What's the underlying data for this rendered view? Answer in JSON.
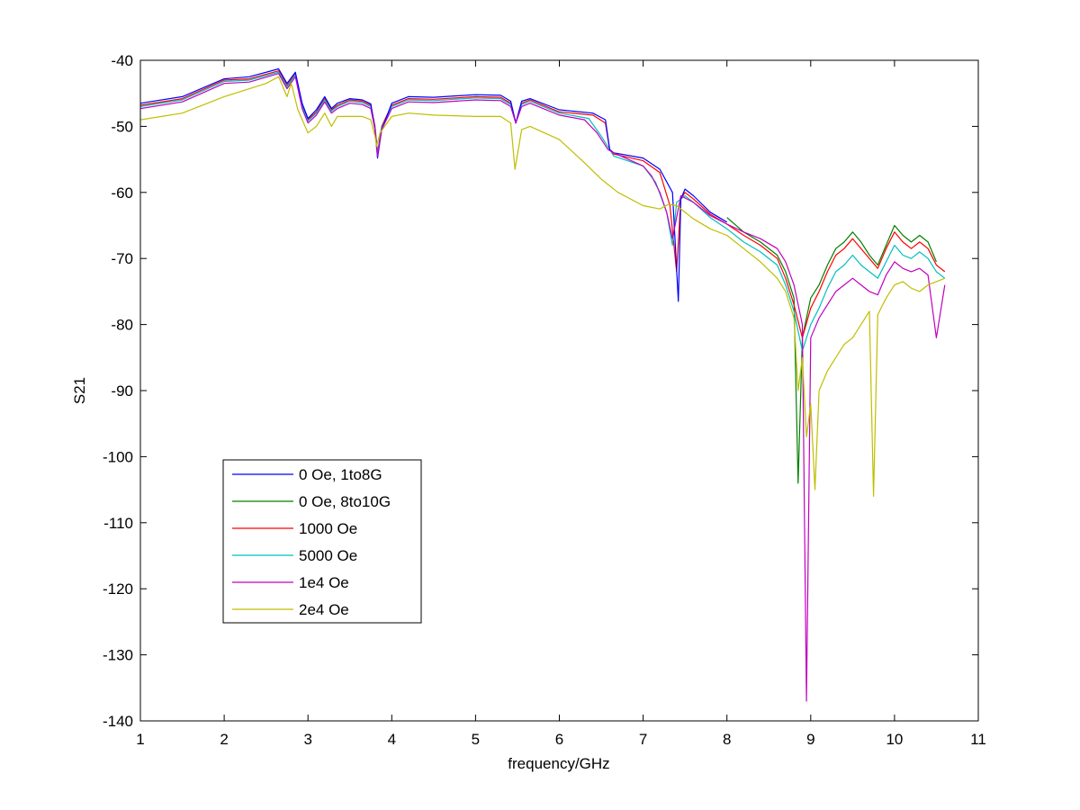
{
  "chart_data": {
    "type": "line",
    "xlabel": "frequency/GHz",
    "ylabel": "S21",
    "xlim": [
      1,
      11
    ],
    "ylim": [
      -140,
      -40
    ],
    "xticks": [
      1,
      2,
      3,
      4,
      5,
      6,
      7,
      8,
      9,
      10,
      11
    ],
    "yticks": [
      -40,
      -50,
      -60,
      -70,
      -80,
      -90,
      -100,
      -110,
      -120,
      -130,
      -140
    ],
    "grid": false,
    "legend_position": "lower-left",
    "series": [
      {
        "name": "0 Oe, 1to8G",
        "color": "#0000ff",
        "x": [
          1.0,
          1.5,
          2.0,
          2.3,
          2.65,
          2.75,
          2.85,
          2.93,
          3.0,
          3.1,
          3.2,
          3.28,
          3.35,
          3.5,
          3.65,
          3.75,
          3.8,
          3.83,
          3.88,
          4.0,
          4.2,
          4.5,
          5.0,
          5.3,
          5.42,
          5.48,
          5.55,
          5.65,
          6.0,
          6.4,
          6.55,
          6.6,
          6.65,
          7.0,
          7.2,
          7.35,
          7.42,
          7.45,
          7.5,
          7.6,
          7.8,
          8.0
        ],
        "values": [
          -46.5,
          -45.5,
          -42.8,
          -42.5,
          -41.3,
          -43.5,
          -41.8,
          -46.5,
          -48.8,
          -47.5,
          -45.5,
          -47.3,
          -46.5,
          -45.8,
          -46.0,
          -46.6,
          -50.5,
          -54.8,
          -50.5,
          -46.5,
          -45.5,
          -45.6,
          -45.2,
          -45.3,
          -46.2,
          -49.5,
          -46.2,
          -45.8,
          -47.5,
          -48.0,
          -49.0,
          -53.5,
          -54.0,
          -54.8,
          -56.5,
          -60.0,
          -76.5,
          -61.0,
          -59.5,
          -60.5,
          -63.0,
          -64.5
        ]
      },
      {
        "name": "0 Oe, 8to10G",
        "color": "#007f00",
        "x": [
          8.0,
          8.2,
          8.4,
          8.6,
          8.7,
          8.8,
          8.85,
          8.9,
          8.95,
          9.0,
          9.1,
          9.2,
          9.3,
          9.4,
          9.5,
          9.6,
          9.7,
          9.8,
          9.9,
          10.0,
          10.1,
          10.2,
          10.3,
          10.4,
          10.5
        ],
        "values": [
          -63.8,
          -66.0,
          -67.5,
          -69.5,
          -72.0,
          -76.0,
          -104.0,
          -82.0,
          -79.0,
          -76.0,
          -74.0,
          -71.0,
          -68.5,
          -67.5,
          -66.0,
          -67.5,
          -69.5,
          -71.0,
          -68.0,
          -65.0,
          -66.5,
          -67.5,
          -66.5,
          -67.5,
          -70.5
        ]
      },
      {
        "name": "1000 Oe",
        "color": "#ff0000",
        "x": [
          1.0,
          1.5,
          2.0,
          2.3,
          2.65,
          2.75,
          2.85,
          2.93,
          3.0,
          3.1,
          3.2,
          3.28,
          3.35,
          3.5,
          3.65,
          3.75,
          3.8,
          3.83,
          3.88,
          4.0,
          4.2,
          4.5,
          5.0,
          5.3,
          5.42,
          5.48,
          5.55,
          5.65,
          6.0,
          6.4,
          6.55,
          6.6,
          6.65,
          7.0,
          7.2,
          7.32,
          7.4,
          7.45,
          7.5,
          7.6,
          7.8,
          8.0,
          8.2,
          8.4,
          8.6,
          8.7,
          8.8,
          8.9,
          9.0,
          9.1,
          9.2,
          9.3,
          9.4,
          9.5,
          9.6,
          9.7,
          9.8,
          9.9,
          10.0,
          10.1,
          10.2,
          10.3,
          10.4,
          10.5,
          10.6
        ],
        "values": [
          -46.8,
          -45.8,
          -43.0,
          -42.8,
          -41.6,
          -43.8,
          -42.0,
          -46.8,
          -49.0,
          -47.8,
          -45.8,
          -47.5,
          -46.8,
          -46.0,
          -46.2,
          -46.8,
          -50.0,
          -54.0,
          -50.0,
          -46.8,
          -45.8,
          -45.9,
          -45.5,
          -45.6,
          -46.5,
          -49.5,
          -46.5,
          -46.0,
          -47.8,
          -48.3,
          -49.5,
          -53.5,
          -54.2,
          -55.2,
          -57.0,
          -62.0,
          -72.0,
          -61.0,
          -60.0,
          -61.0,
          -63.3,
          -64.8,
          -66.5,
          -68.0,
          -70.0,
          -73.0,
          -77.0,
          -82.0,
          -77.5,
          -75.0,
          -72.0,
          -69.5,
          -68.5,
          -67.0,
          -68.5,
          -70.0,
          -71.5,
          -68.5,
          -66.0,
          -67.5,
          -68.5,
          -67.5,
          -68.5,
          -71.0,
          -72.0
        ]
      },
      {
        "name": "5000 Oe",
        "color": "#00bfbf",
        "x": [
          1.0,
          1.5,
          2.0,
          2.3,
          2.65,
          2.75,
          2.85,
          2.93,
          3.0,
          3.1,
          3.2,
          3.28,
          3.35,
          3.5,
          3.65,
          3.75,
          3.8,
          3.83,
          3.88,
          4.0,
          4.2,
          4.5,
          5.0,
          5.3,
          5.42,
          5.48,
          5.55,
          5.65,
          6.0,
          6.35,
          6.5,
          6.6,
          6.65,
          7.0,
          7.15,
          7.28,
          7.35,
          7.4,
          7.5,
          7.6,
          7.8,
          8.0,
          8.2,
          8.4,
          8.6,
          8.7,
          8.8,
          8.9,
          9.0,
          9.1,
          9.2,
          9.3,
          9.4,
          9.5,
          9.6,
          9.7,
          9.8,
          9.9,
          10.0,
          10.1,
          10.2,
          10.3,
          10.4,
          10.5,
          10.6
        ],
        "values": [
          -47.0,
          -46.0,
          -43.2,
          -43.0,
          -41.8,
          -44.0,
          -42.2,
          -47.0,
          -49.2,
          -48.0,
          -46.0,
          -47.7,
          -47.0,
          -46.2,
          -46.4,
          -47.0,
          -50.2,
          -54.2,
          -50.2,
          -47.0,
          -46.0,
          -46.1,
          -45.7,
          -45.8,
          -46.7,
          -49.5,
          -46.7,
          -46.2,
          -48.0,
          -48.8,
          -51.5,
          -53.5,
          -54.5,
          -56.0,
          -58.5,
          -63.0,
          -68.0,
          -61.5,
          -60.5,
          -61.5,
          -63.8,
          -65.5,
          -67.5,
          -69.0,
          -71.0,
          -74.0,
          -78.0,
          -84.0,
          -80.0,
          -77.5,
          -74.5,
          -72.0,
          -71.0,
          -69.5,
          -71.0,
          -72.0,
          -73.0,
          -70.5,
          -68.0,
          -69.5,
          -70.0,
          -69.0,
          -70.0,
          -72.0,
          -73.0
        ]
      },
      {
        "name": "1e4 Oe",
        "color": "#bf00bf",
        "x": [
          1.0,
          1.5,
          2.0,
          2.3,
          2.65,
          2.75,
          2.85,
          2.93,
          3.0,
          3.1,
          3.2,
          3.28,
          3.35,
          3.5,
          3.65,
          3.75,
          3.8,
          3.83,
          3.88,
          4.0,
          4.2,
          4.5,
          5.0,
          5.3,
          5.42,
          5.48,
          5.55,
          5.65,
          6.0,
          6.3,
          6.45,
          6.58,
          6.65,
          7.0,
          7.1,
          7.2,
          7.28,
          7.35,
          7.45,
          7.6,
          7.8,
          8.0,
          8.2,
          8.4,
          8.6,
          8.7,
          8.8,
          8.9,
          8.95,
          9.0,
          9.1,
          9.2,
          9.3,
          9.4,
          9.5,
          9.6,
          9.7,
          9.8,
          9.9,
          10.0,
          10.1,
          10.2,
          10.3,
          10.4,
          10.5,
          10.6
        ],
        "values": [
          -47.3,
          -46.3,
          -43.5,
          -43.3,
          -42.0,
          -44.3,
          -42.5,
          -47.3,
          -49.5,
          -48.3,
          -46.3,
          -48.0,
          -47.3,
          -46.5,
          -46.7,
          -47.3,
          -50.5,
          -54.5,
          -50.5,
          -47.3,
          -46.3,
          -46.4,
          -46.0,
          -46.1,
          -47.0,
          -49.5,
          -47.0,
          -46.5,
          -48.3,
          -49.0,
          -51.0,
          -53.5,
          -54.0,
          -56.0,
          -57.5,
          -60.0,
          -63.0,
          -67.0,
          -60.5,
          -61.5,
          -63.5,
          -64.8,
          -66.0,
          -67.0,
          -68.5,
          -70.5,
          -74.0,
          -80.0,
          -137.0,
          -82.0,
          -79.0,
          -77.0,
          -75.0,
          -74.0,
          -73.0,
          -74.0,
          -75.0,
          -75.5,
          -72.5,
          -70.5,
          -71.5,
          -72.0,
          -71.5,
          -72.5,
          -82.0,
          -74.0
        ]
      },
      {
        "name": "2e4 Oe",
        "color": "#bfbf00",
        "x": [
          1.0,
          1.5,
          2.0,
          2.5,
          2.65,
          2.75,
          2.8,
          2.88,
          3.0,
          3.1,
          3.2,
          3.28,
          3.35,
          3.5,
          3.65,
          3.75,
          3.8,
          3.82,
          3.86,
          4.0,
          4.2,
          4.5,
          5.0,
          5.3,
          5.42,
          5.47,
          5.55,
          5.65,
          6.0,
          6.3,
          6.5,
          6.7,
          7.0,
          7.2,
          7.3,
          7.4,
          7.6,
          7.8,
          8.0,
          8.2,
          8.4,
          8.6,
          8.7,
          8.8,
          8.85,
          8.9,
          8.95,
          9.0,
          9.05,
          9.1,
          9.2,
          9.3,
          9.4,
          9.5,
          9.6,
          9.7,
          9.75,
          9.8,
          9.9,
          10.0,
          10.1,
          10.2,
          10.3,
          10.4,
          10.5,
          10.6
        ],
        "values": [
          -49.0,
          -48.0,
          -45.5,
          -43.5,
          -42.5,
          -45.5,
          -43.5,
          -47.5,
          -51.0,
          -50.0,
          -48.0,
          -50.0,
          -48.5,
          -48.5,
          -48.5,
          -49.0,
          -51.5,
          -53.0,
          -51.0,
          -48.5,
          -48.0,
          -48.3,
          -48.5,
          -48.5,
          -49.5,
          -56.5,
          -50.5,
          -50.0,
          -52.0,
          -55.5,
          -58.0,
          -60.0,
          -62.0,
          -62.5,
          -61.8,
          -62.0,
          -64.0,
          -65.5,
          -66.5,
          -68.5,
          -70.5,
          -73.0,
          -75.0,
          -79.0,
          -90.0,
          -85.0,
          -97.0,
          -92.0,
          -105.0,
          -90.0,
          -87.0,
          -85.0,
          -83.0,
          -82.0,
          -80.0,
          -78.0,
          -106.0,
          -78.5,
          -76.0,
          -74.0,
          -73.5,
          -74.5,
          -75.0,
          -74.0,
          -73.5,
          -73.0
        ]
      }
    ]
  }
}
